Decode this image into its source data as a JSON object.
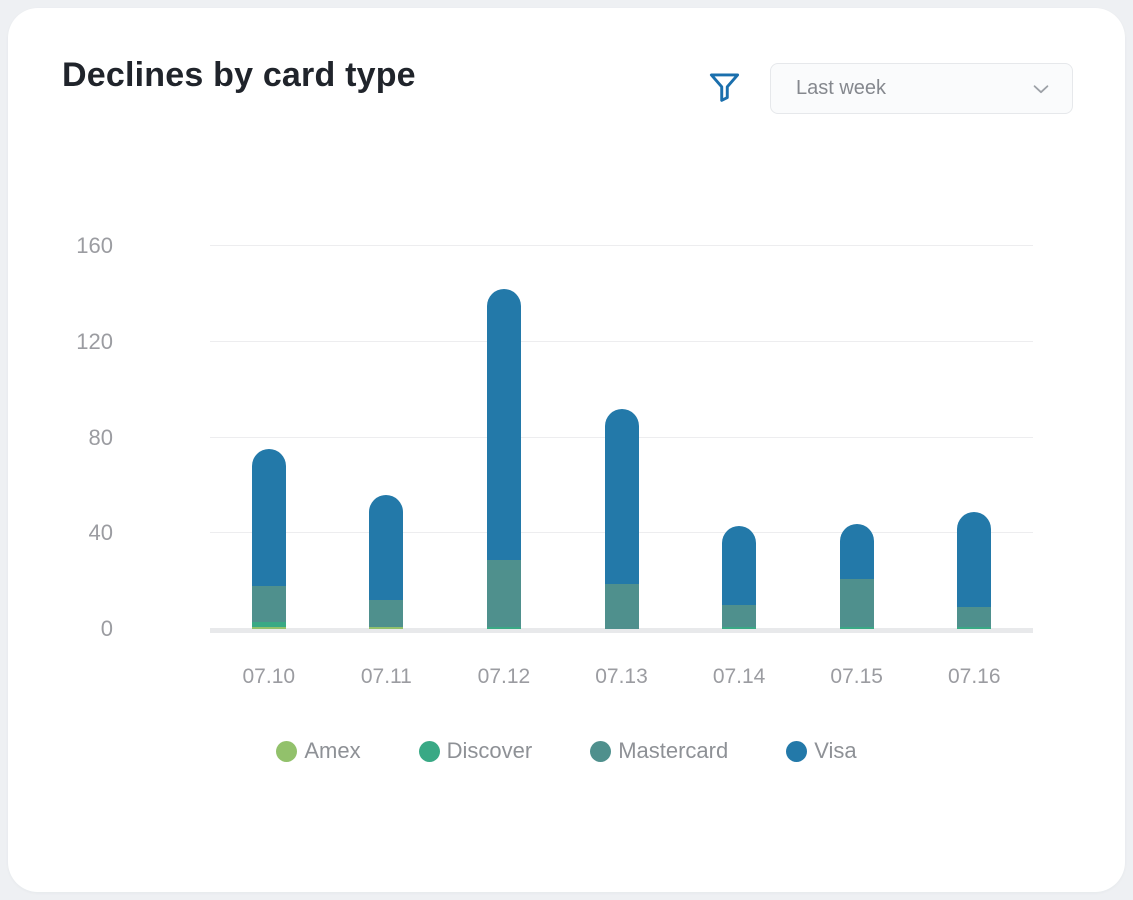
{
  "header": {
    "title": "Declines by card type"
  },
  "toolbar": {
    "filter_icon": "funnel-icon",
    "filter_icon_color": "#1a6fad",
    "dropdown": {
      "value": "Last week",
      "chevron_icon": "chevron-down-icon"
    }
  },
  "colors": {
    "card_background": "#ffffff",
    "page_background": "#eef0f3",
    "gridline": "#ededef",
    "axis_baseline": "#e8e9eb",
    "tick_label": "#9b9ca1",
    "legend_label": "#8e9196",
    "title_text": "#20242b"
  },
  "chart_data": {
    "type": "bar",
    "stacked": true,
    "title": "Declines by card type",
    "xlabel": "",
    "ylabel": "",
    "categories": [
      "07.10",
      "07.11",
      "07.12",
      "07.13",
      "07.14",
      "07.15",
      "07.16"
    ],
    "series": [
      {
        "name": "Amex",
        "color": "#92c16b",
        "values": [
          1,
          1,
          0,
          0,
          0,
          0,
          0
        ]
      },
      {
        "name": "Discover",
        "color": "#39a985",
        "values": [
          2,
          0,
          1,
          0,
          1,
          1,
          1
        ]
      },
      {
        "name": "Mastercard",
        "color": "#4f908d",
        "values": [
          15,
          11,
          28,
          19,
          9,
          20,
          8
        ]
      },
      {
        "name": "Visa",
        "color": "#2379a9",
        "values": [
          57,
          44,
          113,
          73,
          33,
          23,
          40
        ]
      }
    ],
    "totals": [
      75,
      56,
      142,
      92,
      43,
      44,
      49
    ],
    "ylim": [
      0,
      160
    ],
    "yticks": [
      0,
      40,
      80,
      120,
      160
    ],
    "grid": true,
    "legend_position": "bottom"
  }
}
